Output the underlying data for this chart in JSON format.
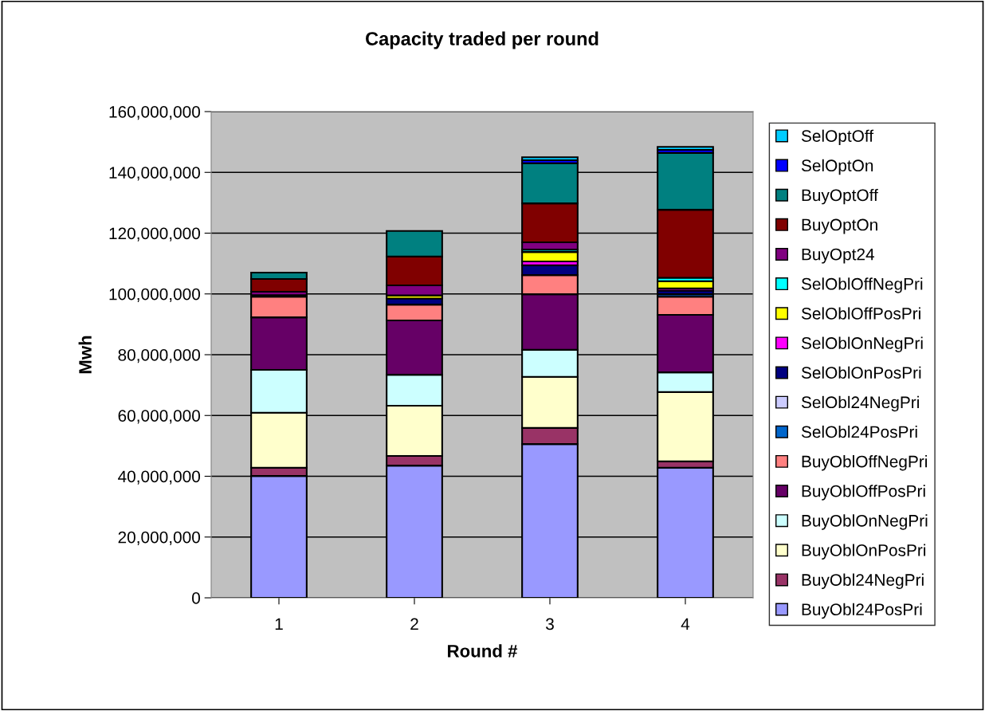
{
  "chart_data": {
    "type": "bar",
    "stacked": true,
    "title": "Capacity traded per round",
    "xlabel": "Round #",
    "ylabel": "Mwh",
    "categories": [
      "1",
      "2",
      "3",
      "4"
    ],
    "ylim": [
      0,
      160000000
    ],
    "yticks": [
      0,
      {
        "value": 20000000,
        "label": "20,000,000"
      },
      {
        "value": 40000000,
        "label": "40,000,000"
      },
      {
        "value": 60000000,
        "label": "60,000,000"
      },
      {
        "value": 80000000,
        "label": "80,000,000"
      },
      {
        "value": 100000000,
        "label": "100,000,000"
      },
      {
        "value": 120000000,
        "label": "120,000,000"
      },
      {
        "value": 140000000,
        "label": "140,000,000"
      },
      {
        "value": 160000000,
        "label": "160,000,000"
      }
    ],
    "grid": "y",
    "legend": "right",
    "series": [
      {
        "name": "BuyObl24PosPri",
        "color": "#9999ff",
        "values": [
          40100000,
          43500000,
          50600000,
          42800000
        ]
      },
      {
        "name": "BuyObl24NegPri",
        "color": "#993366",
        "values": [
          2700000,
          3200000,
          5300000,
          2100000
        ]
      },
      {
        "name": "BuyOblOnPosPri",
        "color": "#ffffcc",
        "values": [
          18100000,
          16500000,
          16800000,
          22800000
        ]
      },
      {
        "name": "BuyOblOnNegPri",
        "color": "#ccffff",
        "values": [
          14100000,
          10200000,
          8900000,
          6500000
        ]
      },
      {
        "name": "BuyOblOffPosPri",
        "color": "#660066",
        "values": [
          17300000,
          17900000,
          18300000,
          18900000
        ]
      },
      {
        "name": "BuyOblOffNegPri",
        "color": "#ff8080",
        "values": [
          6800000,
          5200000,
          6300000,
          6000000
        ]
      },
      {
        "name": "SelObl24PosPri",
        "color": "#0066cc",
        "values": [
          0,
          0,
          0,
          800000
        ]
      },
      {
        "name": "SelObl24NegPri",
        "color": "#ccccff",
        "values": [
          0,
          0,
          0,
          0
        ]
      },
      {
        "name": "SelOblOnPosPri",
        "color": "#000080",
        "values": [
          500000,
          2000000,
          3200000,
          1200000
        ]
      },
      {
        "name": "SelOblOnNegPri",
        "color": "#ff00ff",
        "values": [
          0,
          0,
          1300000,
          700000
        ]
      },
      {
        "name": "SelOblOffPosPri",
        "color": "#ffff00",
        "values": [
          0,
          1000000,
          3100000,
          2400000
        ]
      },
      {
        "name": "SelOblOffNegPri",
        "color": "#00ffff",
        "values": [
          0,
          0,
          800000,
          1100000
        ]
      },
      {
        "name": "BuyOpt24",
        "color": "#800080",
        "values": [
          1100000,
          3300000,
          2400000,
          0
        ]
      },
      {
        "name": "BuyOptOn",
        "color": "#800000",
        "values": [
          4200000,
          9500000,
          12800000,
          22400000
        ]
      },
      {
        "name": "BuyOptOff",
        "color": "#008080",
        "values": [
          2100000,
          8400000,
          13200000,
          18700000
        ]
      },
      {
        "name": "SelOptOn",
        "color": "#0000ff",
        "values": [
          0,
          0,
          1000000,
          1000000
        ]
      },
      {
        "name": "SelOptOff",
        "color": "#00ccff",
        "values": [
          0,
          0,
          1000000,
          1000000
        ]
      }
    ]
  }
}
